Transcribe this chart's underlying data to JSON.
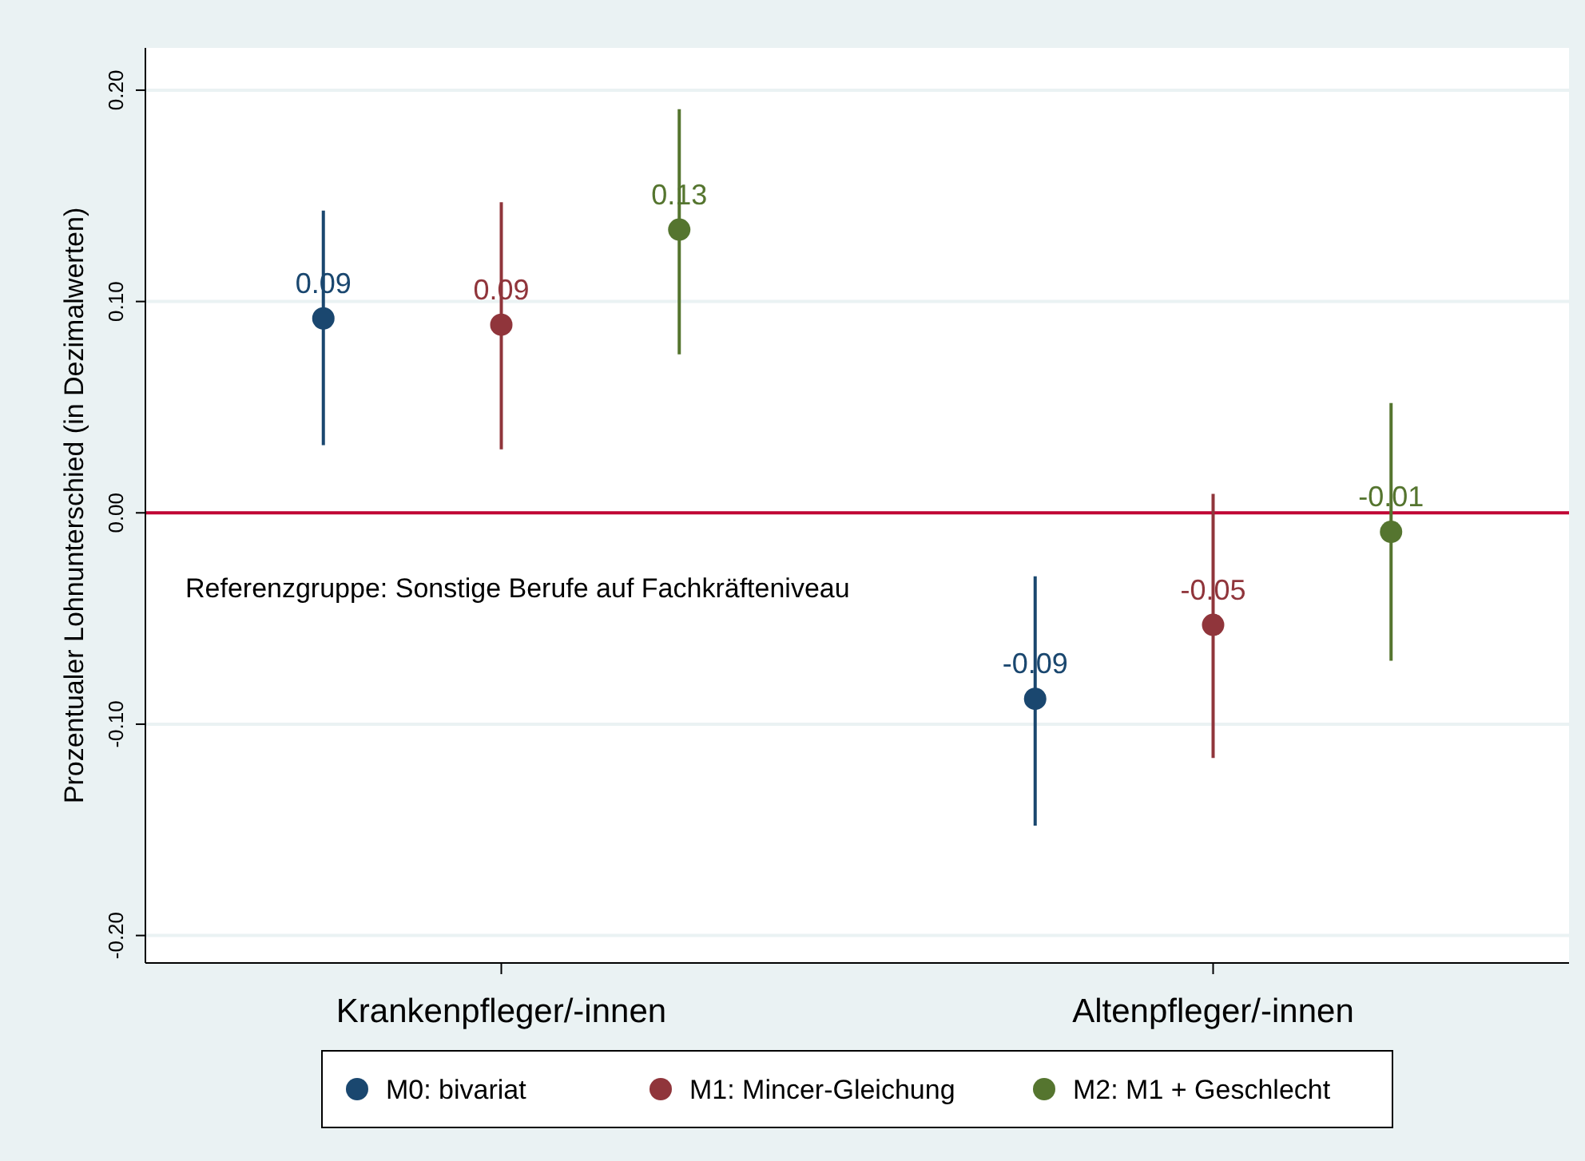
{
  "chart_data": {
    "type": "scatter",
    "ylabel": "Prozentualer Lohnunterschied (in Dezimalwerten)",
    "categories": [
      "Krankenpfleger/-innen",
      "Altenpfleger/-innen"
    ],
    "ylim": [
      -0.213,
      0.22
    ],
    "yticks": [
      {
        "value": -0.2,
        "label": "-0.20"
      },
      {
        "value": -0.1,
        "label": "-0.10"
      },
      {
        "value": 0,
        "label": "0.00"
      },
      {
        "value": 0.1,
        "label": "0.10"
      },
      {
        "value": 0.2,
        "label": "0.20"
      }
    ],
    "grid": "y",
    "marker": "circle",
    "legend": "bottom",
    "ref_lines": [
      {
        "axis": "y",
        "value": 0,
        "color": "#c10534"
      }
    ],
    "annotations": [
      "Referenzgruppe: Sonstige Berufe auf Fachkräfteniveau"
    ],
    "series": [
      {
        "name": "M0: bivariat",
        "color": "#1a476f",
        "values": [
          0.092,
          -0.088
        ],
        "errors": [
          [
            0.032,
            0.143
          ],
          [
            -0.148,
            -0.03
          ]
        ],
        "value_labels": [
          "0.09",
          "-0.09"
        ]
      },
      {
        "name": "M1: Mincer-Gleichung",
        "color": "#90353b",
        "values": [
          0.089,
          -0.053
        ],
        "errors": [
          [
            0.03,
            0.147
          ],
          [
            -0.116,
            0.009
          ]
        ],
        "value_labels": [
          "0.09",
          "-0.05"
        ]
      },
      {
        "name": "M2: M1 + Geschlecht",
        "color": "#55752f",
        "values": [
          0.134,
          -0.009
        ],
        "errors": [
          [
            0.075,
            0.191
          ],
          [
            -0.07,
            0.052
          ]
        ],
        "value_labels": [
          "0.13",
          "-0.01"
        ]
      }
    ]
  }
}
